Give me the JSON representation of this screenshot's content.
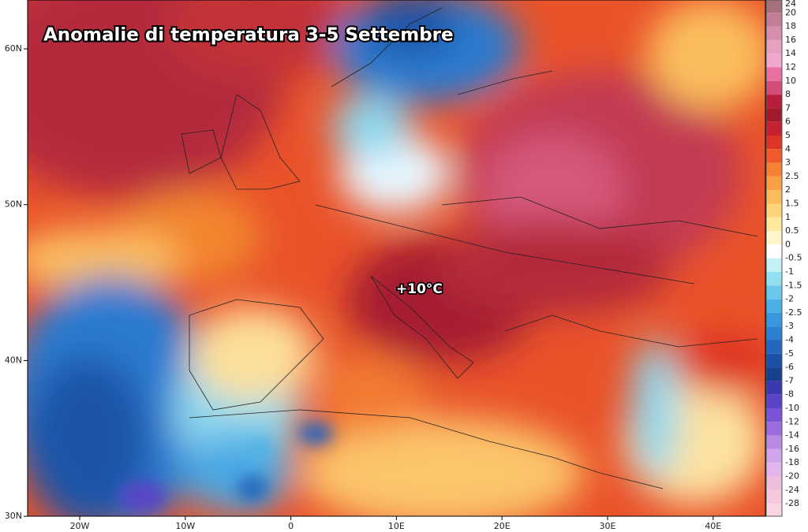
{
  "map": {
    "title": "Anomalie di temperatura 3-5 Settembre",
    "annotation": "+10°C",
    "lat_labels": [
      "60N",
      "50N",
      "40N",
      "30N"
    ],
    "lon_labels": [
      "20W",
      "10W",
      "0",
      "10E",
      "20E",
      "30E",
      "40E"
    ],
    "legend": {
      "ticks": [
        24,
        20,
        18,
        16,
        14,
        12,
        10,
        8,
        7,
        6,
        5,
        4,
        3,
        2.5,
        2,
        1.5,
        1,
        0.5,
        0,
        -0.5,
        -1,
        -1.5,
        -2,
        -2.5,
        -3,
        -4,
        -5,
        -6,
        -7,
        -8,
        -10,
        -12,
        -14,
        -16,
        -18,
        -20,
        -24,
        -28
      ],
      "colors": [
        "#a3717c",
        "#c27e97",
        "#d68ead",
        "#e6a0c2",
        "#f0a6cd",
        "#e86fa0",
        "#d44c78",
        "#b81e3a",
        "#a01a2c",
        "#c42230",
        "#de3524",
        "#ef5a28",
        "#f58234",
        "#f9a042",
        "#fbbd5c",
        "#fdd47c",
        "#fee99c",
        "#fff6cc",
        "#ffffff",
        "#c2f0f4",
        "#92e0ef",
        "#6ac8ec",
        "#4bb0e6",
        "#3898de",
        "#2b80d2",
        "#2266be",
        "#1b50a6",
        "#17408e",
        "#3a3aae",
        "#5a44c6",
        "#7a54d6",
        "#9a6cde",
        "#b88ae4",
        "#cfa6ea",
        "#e2b6ea",
        "#eebfdc",
        "#f4c9dc",
        "#f8d6e2"
      ]
    }
  }
}
